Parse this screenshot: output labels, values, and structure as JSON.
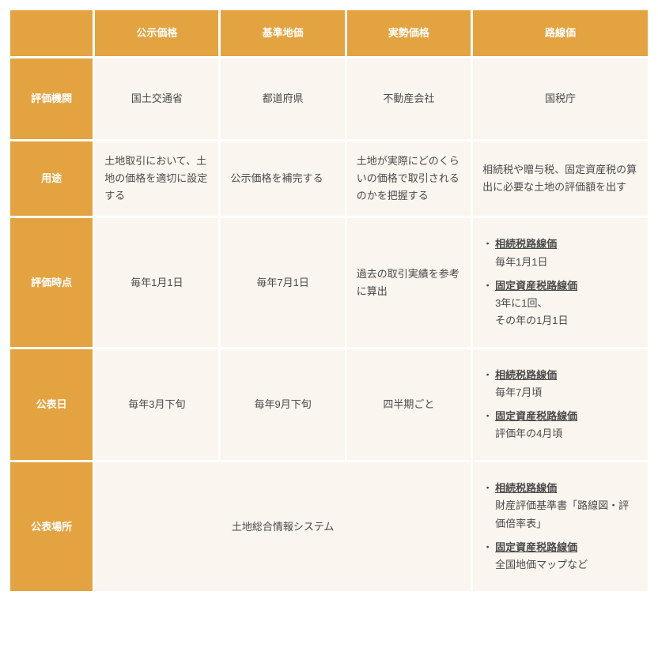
{
  "columns": [
    "公示価格",
    "基準地価",
    "実勢価格",
    "路線価"
  ],
  "rows": {
    "r1": {
      "head": "評価機関",
      "cells": [
        "国土交通省",
        "都道府県",
        "不動産会社",
        "国税庁"
      ]
    },
    "r2": {
      "head": "用途",
      "cells": [
        "土地取引において、土地の価格を適切に設定する",
        "公示価格を補完する",
        "土地が実際にどのくらいの価格で取引されるのかを把握する",
        "相続税や贈与税、固定資産税の算出に必要な土地の評価額を出す"
      ]
    },
    "r3": {
      "head": "評価時点",
      "cells": [
        "毎年1月1日",
        "毎年7月1日",
        "過去の取引実績を参考に算出"
      ],
      "list": [
        {
          "title": "相続税路線価",
          "body": "毎年1月1日"
        },
        {
          "title": "固定資産税路線価",
          "body": "3年に1回、\nその年の1月1日"
        }
      ]
    },
    "r4": {
      "head": "公表日",
      "cells": [
        "毎年3月下旬",
        "毎年9月下旬",
        "四半期ごと"
      ],
      "list": [
        {
          "title": "相続税路線価",
          "body": "毎年7月頃"
        },
        {
          "title": "固定資産税路線価",
          "body": "評価年の4月頃"
        }
      ]
    },
    "r5": {
      "head": "公表場所",
      "merged": "土地総合情報システム",
      "list": [
        {
          "title": "相続税路線価",
          "body": "財産評価基準書「路線図・評価倍率表」"
        },
        {
          "title": "固定資産税路線価",
          "body": "全国地価マップなど"
        }
      ]
    }
  }
}
